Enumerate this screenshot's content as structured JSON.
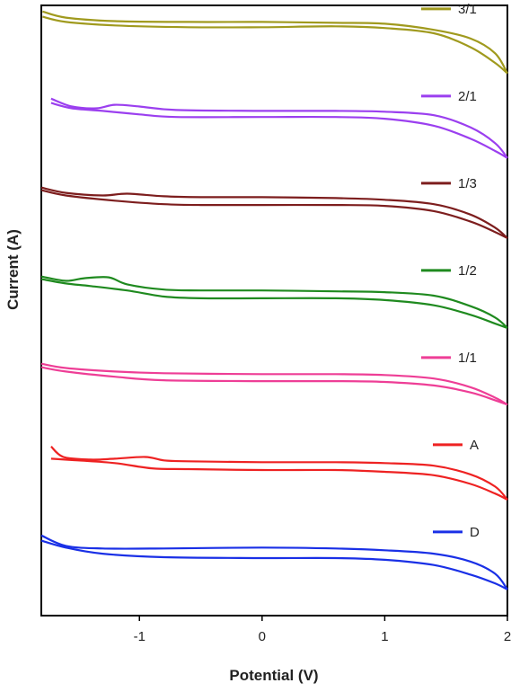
{
  "chart_data": {
    "type": "line",
    "title": "",
    "xlabel": "Potential (V)",
    "ylabel": "Current (A)",
    "xlim": [
      -1.8,
      2.0
    ],
    "ylim": [
      0,
      7
    ],
    "xticks": [
      -1,
      0,
      1,
      2
    ],
    "xtick_labels": [
      "-1",
      "0",
      "1",
      "2"
    ],
    "yticks_shown": false,
    "grid": false,
    "legend_placement": "inline-right",
    "series": [
      {
        "name": "3/1",
        "color": "#a09a1e",
        "offset": 6,
        "forward": [
          [
            -1.79,
            0.93
          ],
          [
            -1.6,
            0.86
          ],
          [
            -1.2,
            0.82
          ],
          [
            -0.6,
            0.81
          ],
          [
            0,
            0.81
          ],
          [
            0.6,
            0.8
          ],
          [
            1.0,
            0.79
          ],
          [
            1.4,
            0.72
          ],
          [
            1.7,
            0.62
          ],
          [
            1.9,
            0.45
          ],
          [
            2.0,
            0.22
          ]
        ],
        "reverse": [
          [
            2.0,
            0.22
          ],
          [
            1.9,
            0.34
          ],
          [
            1.7,
            0.52
          ],
          [
            1.4,
            0.68
          ],
          [
            1.0,
            0.74
          ],
          [
            0.6,
            0.76
          ],
          [
            0,
            0.75
          ],
          [
            -0.6,
            0.75
          ],
          [
            -1.2,
            0.77
          ],
          [
            -1.6,
            0.81
          ],
          [
            -1.79,
            0.87
          ]
        ]
      },
      {
        "name": "2/1",
        "color": "#9b3fef",
        "offset": 5,
        "forward": [
          [
            -1.72,
            0.93
          ],
          [
            -1.55,
            0.84
          ],
          [
            -1.35,
            0.82
          ],
          [
            -1.2,
            0.86
          ],
          [
            -1.0,
            0.84
          ],
          [
            -0.7,
            0.8
          ],
          [
            0,
            0.79
          ],
          [
            0.6,
            0.79
          ],
          [
            1.0,
            0.78
          ],
          [
            1.4,
            0.74
          ],
          [
            1.7,
            0.6
          ],
          [
            1.9,
            0.42
          ],
          [
            2.0,
            0.25
          ]
        ],
        "reverse": [
          [
            2.0,
            0.25
          ],
          [
            1.9,
            0.33
          ],
          [
            1.7,
            0.47
          ],
          [
            1.4,
            0.62
          ],
          [
            1.0,
            0.7
          ],
          [
            0.6,
            0.72
          ],
          [
            0,
            0.72
          ],
          [
            -0.7,
            0.72
          ],
          [
            -1.0,
            0.75
          ],
          [
            -1.3,
            0.79
          ],
          [
            -1.55,
            0.82
          ],
          [
            -1.72,
            0.88
          ]
        ]
      },
      {
        "name": "1/3",
        "color": "#7d1e1e",
        "offset": 4,
        "forward": [
          [
            -1.8,
            0.91
          ],
          [
            -1.6,
            0.85
          ],
          [
            -1.3,
            0.82
          ],
          [
            -1.1,
            0.84
          ],
          [
            -0.8,
            0.81
          ],
          [
            -0.5,
            0.8
          ],
          [
            0,
            0.8
          ],
          [
            0.6,
            0.79
          ],
          [
            1.0,
            0.77
          ],
          [
            1.4,
            0.72
          ],
          [
            1.7,
            0.6
          ],
          [
            1.9,
            0.45
          ],
          [
            2.0,
            0.33
          ]
        ],
        "reverse": [
          [
            2.0,
            0.33
          ],
          [
            1.9,
            0.4
          ],
          [
            1.7,
            0.52
          ],
          [
            1.4,
            0.64
          ],
          [
            1.0,
            0.7
          ],
          [
            0.6,
            0.71
          ],
          [
            0,
            0.71
          ],
          [
            -0.5,
            0.71
          ],
          [
            -0.8,
            0.72
          ],
          [
            -1.2,
            0.76
          ],
          [
            -1.6,
            0.82
          ],
          [
            -1.8,
            0.88
          ]
        ]
      },
      {
        "name": "1/2",
        "color": "#1f8a1f",
        "offset": 3,
        "forward": [
          [
            -1.8,
            0.89
          ],
          [
            -1.6,
            0.84
          ],
          [
            -1.45,
            0.87
          ],
          [
            -1.25,
            0.88
          ],
          [
            -1.1,
            0.8
          ],
          [
            -0.8,
            0.74
          ],
          [
            -0.5,
            0.73
          ],
          [
            0,
            0.73
          ],
          [
            0.6,
            0.72
          ],
          [
            1.0,
            0.71
          ],
          [
            1.4,
            0.67
          ],
          [
            1.7,
            0.55
          ],
          [
            1.9,
            0.42
          ],
          [
            2.0,
            0.3
          ]
        ],
        "reverse": [
          [
            2.0,
            0.3
          ],
          [
            1.9,
            0.35
          ],
          [
            1.7,
            0.45
          ],
          [
            1.4,
            0.56
          ],
          [
            1.0,
            0.62
          ],
          [
            0.6,
            0.64
          ],
          [
            0,
            0.64
          ],
          [
            -0.5,
            0.64
          ],
          [
            -0.8,
            0.66
          ],
          [
            -1.1,
            0.73
          ],
          [
            -1.4,
            0.78
          ],
          [
            -1.6,
            0.81
          ],
          [
            -1.8,
            0.86
          ]
        ]
      },
      {
        "name": "1/1",
        "color": "#ee3e96",
        "offset": 2,
        "forward": [
          [
            -1.8,
            0.89
          ],
          [
            -1.6,
            0.84
          ],
          [
            -1.2,
            0.8
          ],
          [
            -0.8,
            0.78
          ],
          [
            0,
            0.77
          ],
          [
            0.6,
            0.77
          ],
          [
            1.0,
            0.76
          ],
          [
            1.4,
            0.72
          ],
          [
            1.7,
            0.62
          ],
          [
            1.9,
            0.5
          ],
          [
            2.0,
            0.42
          ]
        ],
        "reverse": [
          [
            2.0,
            0.42
          ],
          [
            1.9,
            0.47
          ],
          [
            1.7,
            0.56
          ],
          [
            1.4,
            0.64
          ],
          [
            1.0,
            0.68
          ],
          [
            0.6,
            0.69
          ],
          [
            0,
            0.69
          ],
          [
            -0.8,
            0.7
          ],
          [
            -1.2,
            0.74
          ],
          [
            -1.6,
            0.8
          ],
          [
            -1.8,
            0.85
          ]
        ]
      },
      {
        "name": "A",
        "color": "#ee2222",
        "offset": 1,
        "forward": [
          [
            -1.72,
            0.94
          ],
          [
            -1.62,
            0.82
          ],
          [
            -1.4,
            0.79
          ],
          [
            -1.2,
            0.8
          ],
          [
            -0.95,
            0.82
          ],
          [
            -0.8,
            0.78
          ],
          [
            -0.6,
            0.77
          ],
          [
            0,
            0.76
          ],
          [
            0.6,
            0.76
          ],
          [
            1.0,
            0.75
          ],
          [
            1.4,
            0.72
          ],
          [
            1.7,
            0.62
          ],
          [
            1.9,
            0.48
          ],
          [
            2.0,
            0.33
          ]
        ],
        "reverse": [
          [
            2.0,
            0.33
          ],
          [
            1.9,
            0.4
          ],
          [
            1.7,
            0.51
          ],
          [
            1.4,
            0.61
          ],
          [
            1.0,
            0.65
          ],
          [
            0.6,
            0.67
          ],
          [
            0,
            0.67
          ],
          [
            -0.6,
            0.68
          ],
          [
            -0.9,
            0.69
          ],
          [
            -1.2,
            0.75
          ],
          [
            -1.5,
            0.78
          ],
          [
            -1.72,
            0.8
          ]
        ]
      },
      {
        "name": "D",
        "color": "#1a30e6",
        "offset": 0,
        "forward": [
          [
            -1.8,
            0.92
          ],
          [
            -1.6,
            0.8
          ],
          [
            -1.3,
            0.77
          ],
          [
            -0.8,
            0.77
          ],
          [
            0,
            0.78
          ],
          [
            0.6,
            0.77
          ],
          [
            1.0,
            0.75
          ],
          [
            1.4,
            0.71
          ],
          [
            1.7,
            0.62
          ],
          [
            1.9,
            0.48
          ],
          [
            2.0,
            0.3
          ]
        ],
        "reverse": [
          [
            2.0,
            0.3
          ],
          [
            1.9,
            0.37
          ],
          [
            1.7,
            0.47
          ],
          [
            1.4,
            0.58
          ],
          [
            1.0,
            0.64
          ],
          [
            0.6,
            0.66
          ],
          [
            0,
            0.66
          ],
          [
            -0.8,
            0.67
          ],
          [
            -1.3,
            0.71
          ],
          [
            -1.6,
            0.78
          ],
          [
            -1.8,
            0.86
          ]
        ]
      }
    ]
  }
}
